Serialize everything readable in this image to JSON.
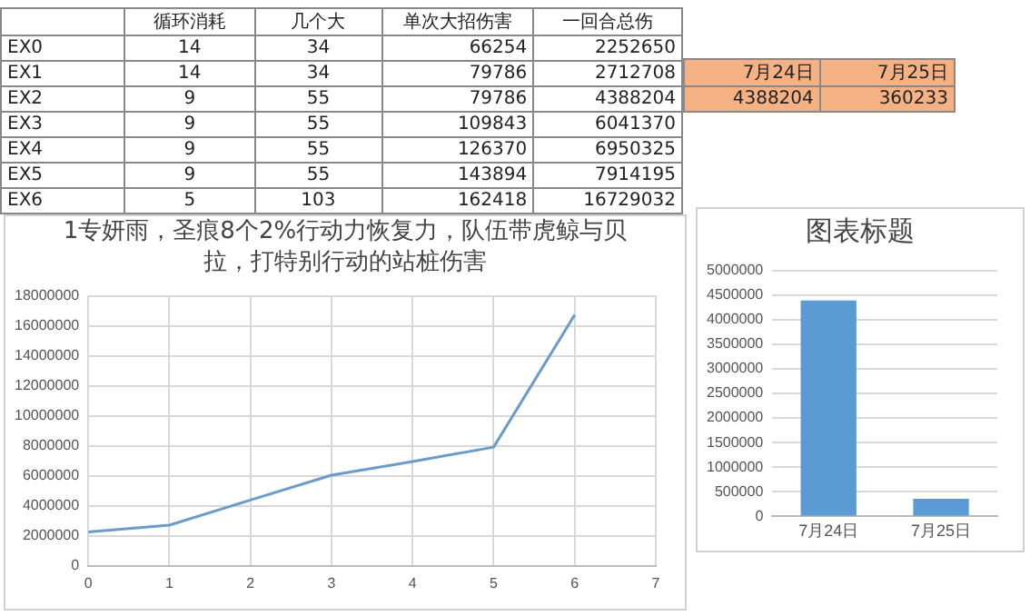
{
  "chart_data": [
    {
      "type": "other",
      "categories": [
        null,
        "循环消耗",
        "几个大",
        "单次大招伤害",
        "一回合总伤"
      ],
      "y_categories": [
        "EX0",
        "EX1",
        "EX2",
        "EX3",
        "EX4",
        "EX5",
        "EX6"
      ],
      "cell_labels": [
        [
          "14",
          "34",
          "66254",
          "2252650"
        ],
        [
          "14",
          "34",
          "79786",
          "2712708"
        ],
        [
          "9",
          "55",
          "79786",
          "4388204"
        ],
        [
          "9",
          "55",
          "109843",
          "6041370"
        ],
        [
          "9",
          "55",
          "126370",
          "6950325"
        ],
        [
          "9",
          "55",
          "143894",
          "7914195"
        ],
        [
          "5",
          "103",
          "162418",
          "16729032"
        ]
      ]
    },
    {
      "type": "other",
      "categories": [
        "7月24日",
        "7月25日"
      ],
      "cell_labels": [
        [
          "4388204",
          "360233"
        ]
      ],
      "color": "#f4b183"
    },
    {
      "type": "line",
      "title": "1专妍雨，圣痕8个2%行动力恢复力，队伍带虎鲸与贝拉，打特别行动的站桩伤害",
      "x": [
        0,
        1,
        2,
        3,
        4,
        5,
        6
      ],
      "series": [
        {
          "color": "#6a9bcb",
          "values": [
            2252650,
            2712708,
            4388204,
            6041370,
            6950325,
            7914195,
            16729032
          ]
        }
      ],
      "xlim": [
        0,
        7
      ],
      "xticks": [
        0,
        1,
        2,
        3,
        4,
        5,
        6,
        7
      ],
      "ylim": [
        0,
        18000000
      ],
      "yticks": [
        0,
        2000000,
        4000000,
        6000000,
        8000000,
        10000000,
        12000000,
        14000000,
        16000000,
        18000000
      ],
      "grid": true,
      "legend": false,
      "marker": "none"
    },
    {
      "type": "bar",
      "title": "图表标题",
      "categories": [
        "7月24日",
        "7月25日"
      ],
      "values": [
        4388204,
        360233
      ],
      "color": "#5b9bd5",
      "ylim": [
        0,
        5000000
      ],
      "yticks": [
        0,
        500000,
        1000000,
        1500000,
        2000000,
        2500000,
        3000000,
        3500000,
        4000000,
        4500000,
        5000000
      ],
      "grid": "y",
      "legend": false
    }
  ]
}
